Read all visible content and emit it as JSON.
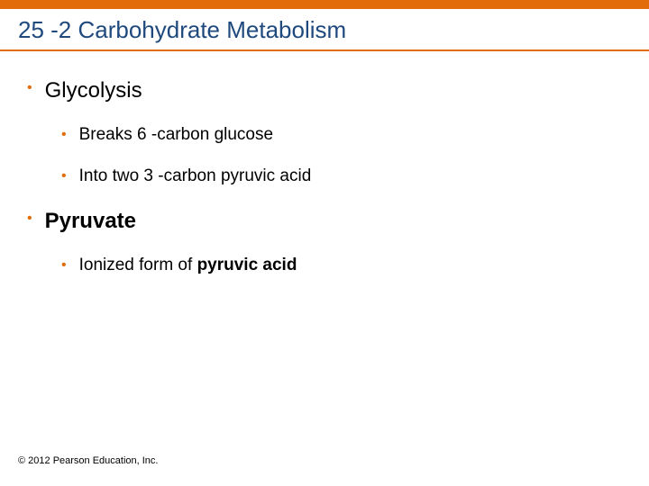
{
  "colors": {
    "accent": "#e36c0a",
    "bullet": "#e36c0a",
    "title": "#1f497d",
    "title_underline": "#e36c0a"
  },
  "title": "25 -2 Carbohydrate Metabolism",
  "items": [
    {
      "level": 1,
      "text": "Glycolysis",
      "bold": false
    },
    {
      "level": 2,
      "text": "Breaks 6 -carbon glucose",
      "bold": false
    },
    {
      "level": 2,
      "text": "Into two 3 -carbon pyruvic acid",
      "bold": false
    },
    {
      "level": 1,
      "text": "Pyruvate",
      "bold": true
    },
    {
      "level": 2,
      "prefix": "Ionized form of ",
      "bold_part": "pyruvic acid"
    }
  ],
  "footer": "© 2012 Pearson Education, Inc."
}
